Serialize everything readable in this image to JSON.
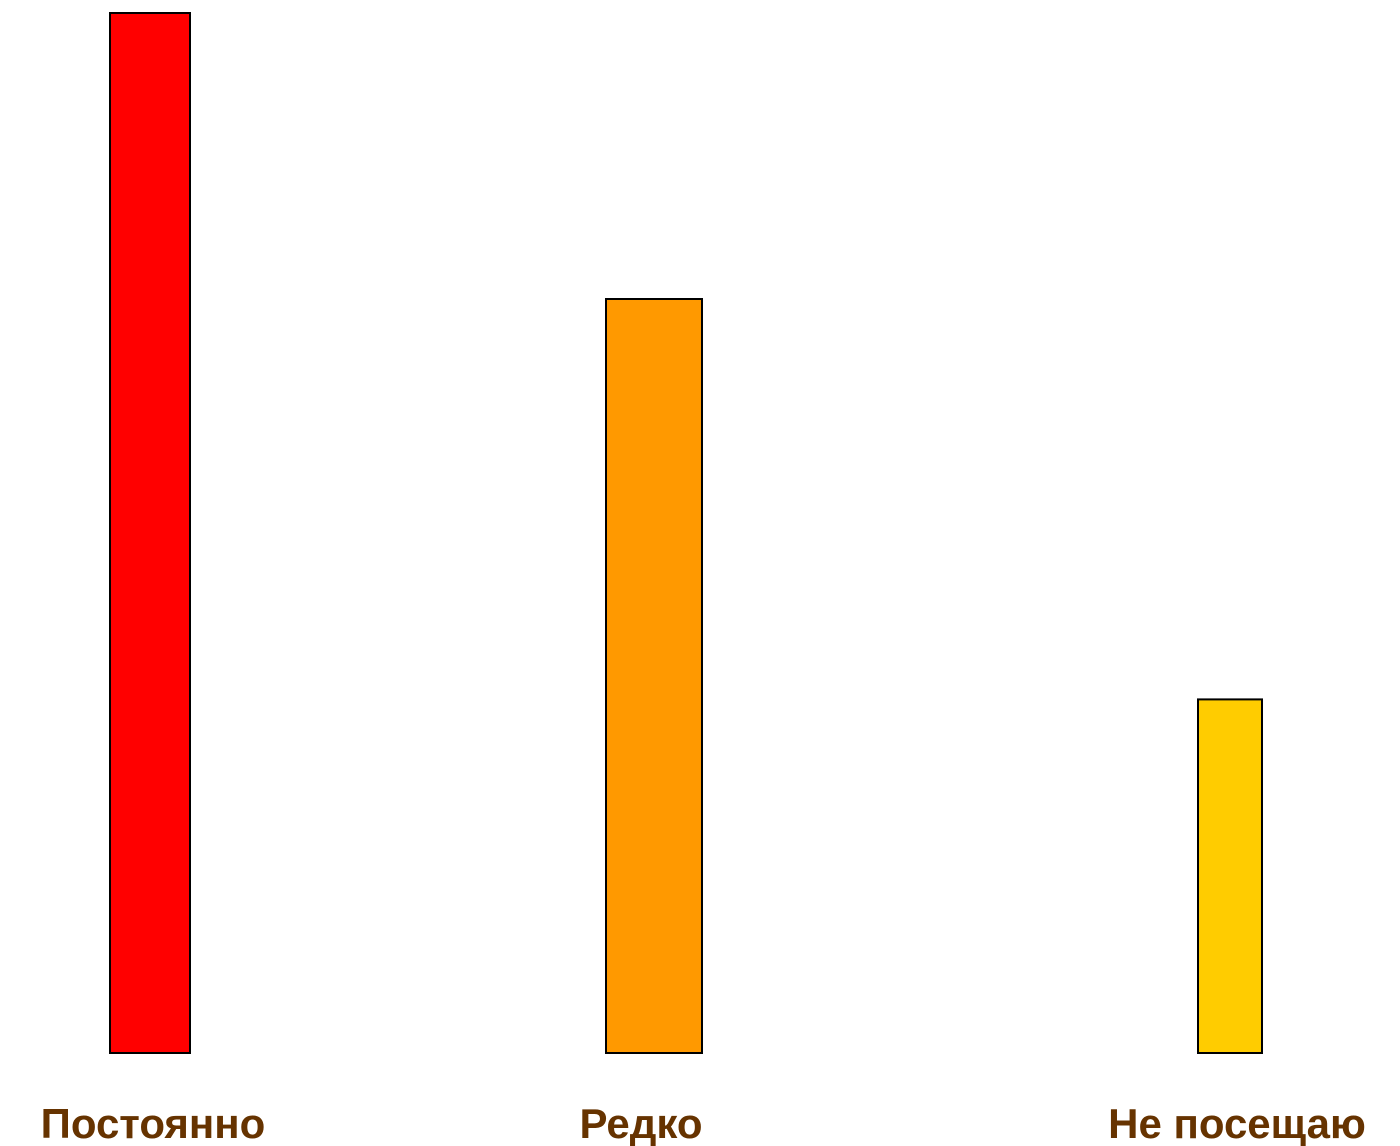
{
  "chart_data": {
    "type": "bar",
    "title": "",
    "xlabel": "",
    "ylabel": "",
    "grid": false,
    "legend": "none",
    "categories": [
      "Постоянно",
      "Редко",
      "Не посещаю"
    ],
    "values": [
      100,
      72.5,
      34
    ],
    "ylim": [
      0,
      100
    ],
    "colors": [
      "#ff0000",
      "#ff9900",
      "#ffcc00"
    ],
    "label_color": "#663300",
    "bar_outline_color": "#000000"
  }
}
